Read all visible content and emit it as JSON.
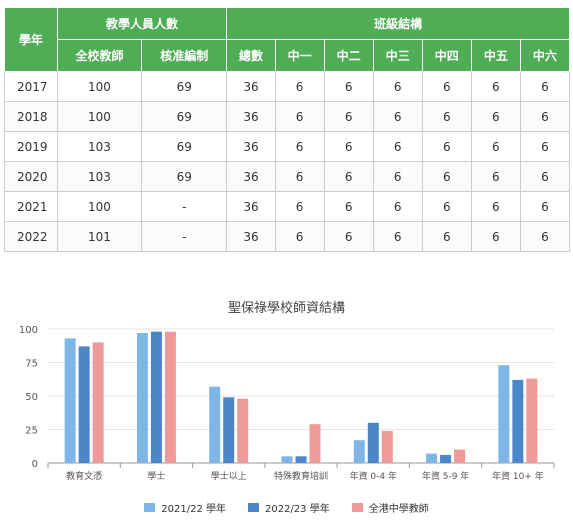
{
  "table": {
    "header": {
      "year": "學年",
      "staff_group": "教學人員人數",
      "class_group": "班級結構",
      "staff_cols": [
        "全校教師",
        "核准編制"
      ],
      "class_cols": [
        "總數",
        "中一",
        "中二",
        "中三",
        "中四",
        "中五",
        "中六"
      ]
    },
    "rows": [
      [
        "2017",
        "100",
        "69",
        "36",
        "6",
        "6",
        "6",
        "6",
        "6",
        "6"
      ],
      [
        "2018",
        "100",
        "69",
        "36",
        "6",
        "6",
        "6",
        "6",
        "6",
        "6"
      ],
      [
        "2019",
        "103",
        "69",
        "36",
        "6",
        "6",
        "6",
        "6",
        "6",
        "6"
      ],
      [
        "2020",
        "103",
        "69",
        "36",
        "6",
        "6",
        "6",
        "6",
        "6",
        "6"
      ],
      [
        "2021",
        "100",
        "-",
        "36",
        "6",
        "6",
        "6",
        "6",
        "6",
        "6"
      ],
      [
        "2022",
        "101",
        "-",
        "36",
        "6",
        "6",
        "6",
        "6",
        "6",
        "6"
      ]
    ]
  },
  "colors": {
    "header_green": "#4fad56",
    "series": [
      "#7eb6e8",
      "#4a86c8",
      "#ee9a98"
    ]
  },
  "chart_data": {
    "type": "bar",
    "title": "聖保祿學校師資結構",
    "categories": [
      "教育文憑",
      "學士",
      "學士以上",
      "特殊教育培訓",
      "年資 0-4 年",
      "年資 5-9 年",
      "年資 10+ 年"
    ],
    "series": [
      {
        "name": "2021/22 學年",
        "values": [
          93,
          97,
          57,
          5,
          17,
          7,
          73
        ]
      },
      {
        "name": "2022/23 學年",
        "values": [
          87,
          98,
          49,
          5,
          30,
          6,
          62
        ]
      },
      {
        "name": "全港中學教師",
        "values": [
          90,
          98,
          48,
          29,
          24,
          10,
          63
        ]
      }
    ],
    "ylim": [
      0,
      100
    ],
    "yticks": [
      0,
      25,
      50,
      75,
      100
    ],
    "xlabel": "",
    "ylabel": "",
    "grid": true,
    "legend": "bottom"
  }
}
